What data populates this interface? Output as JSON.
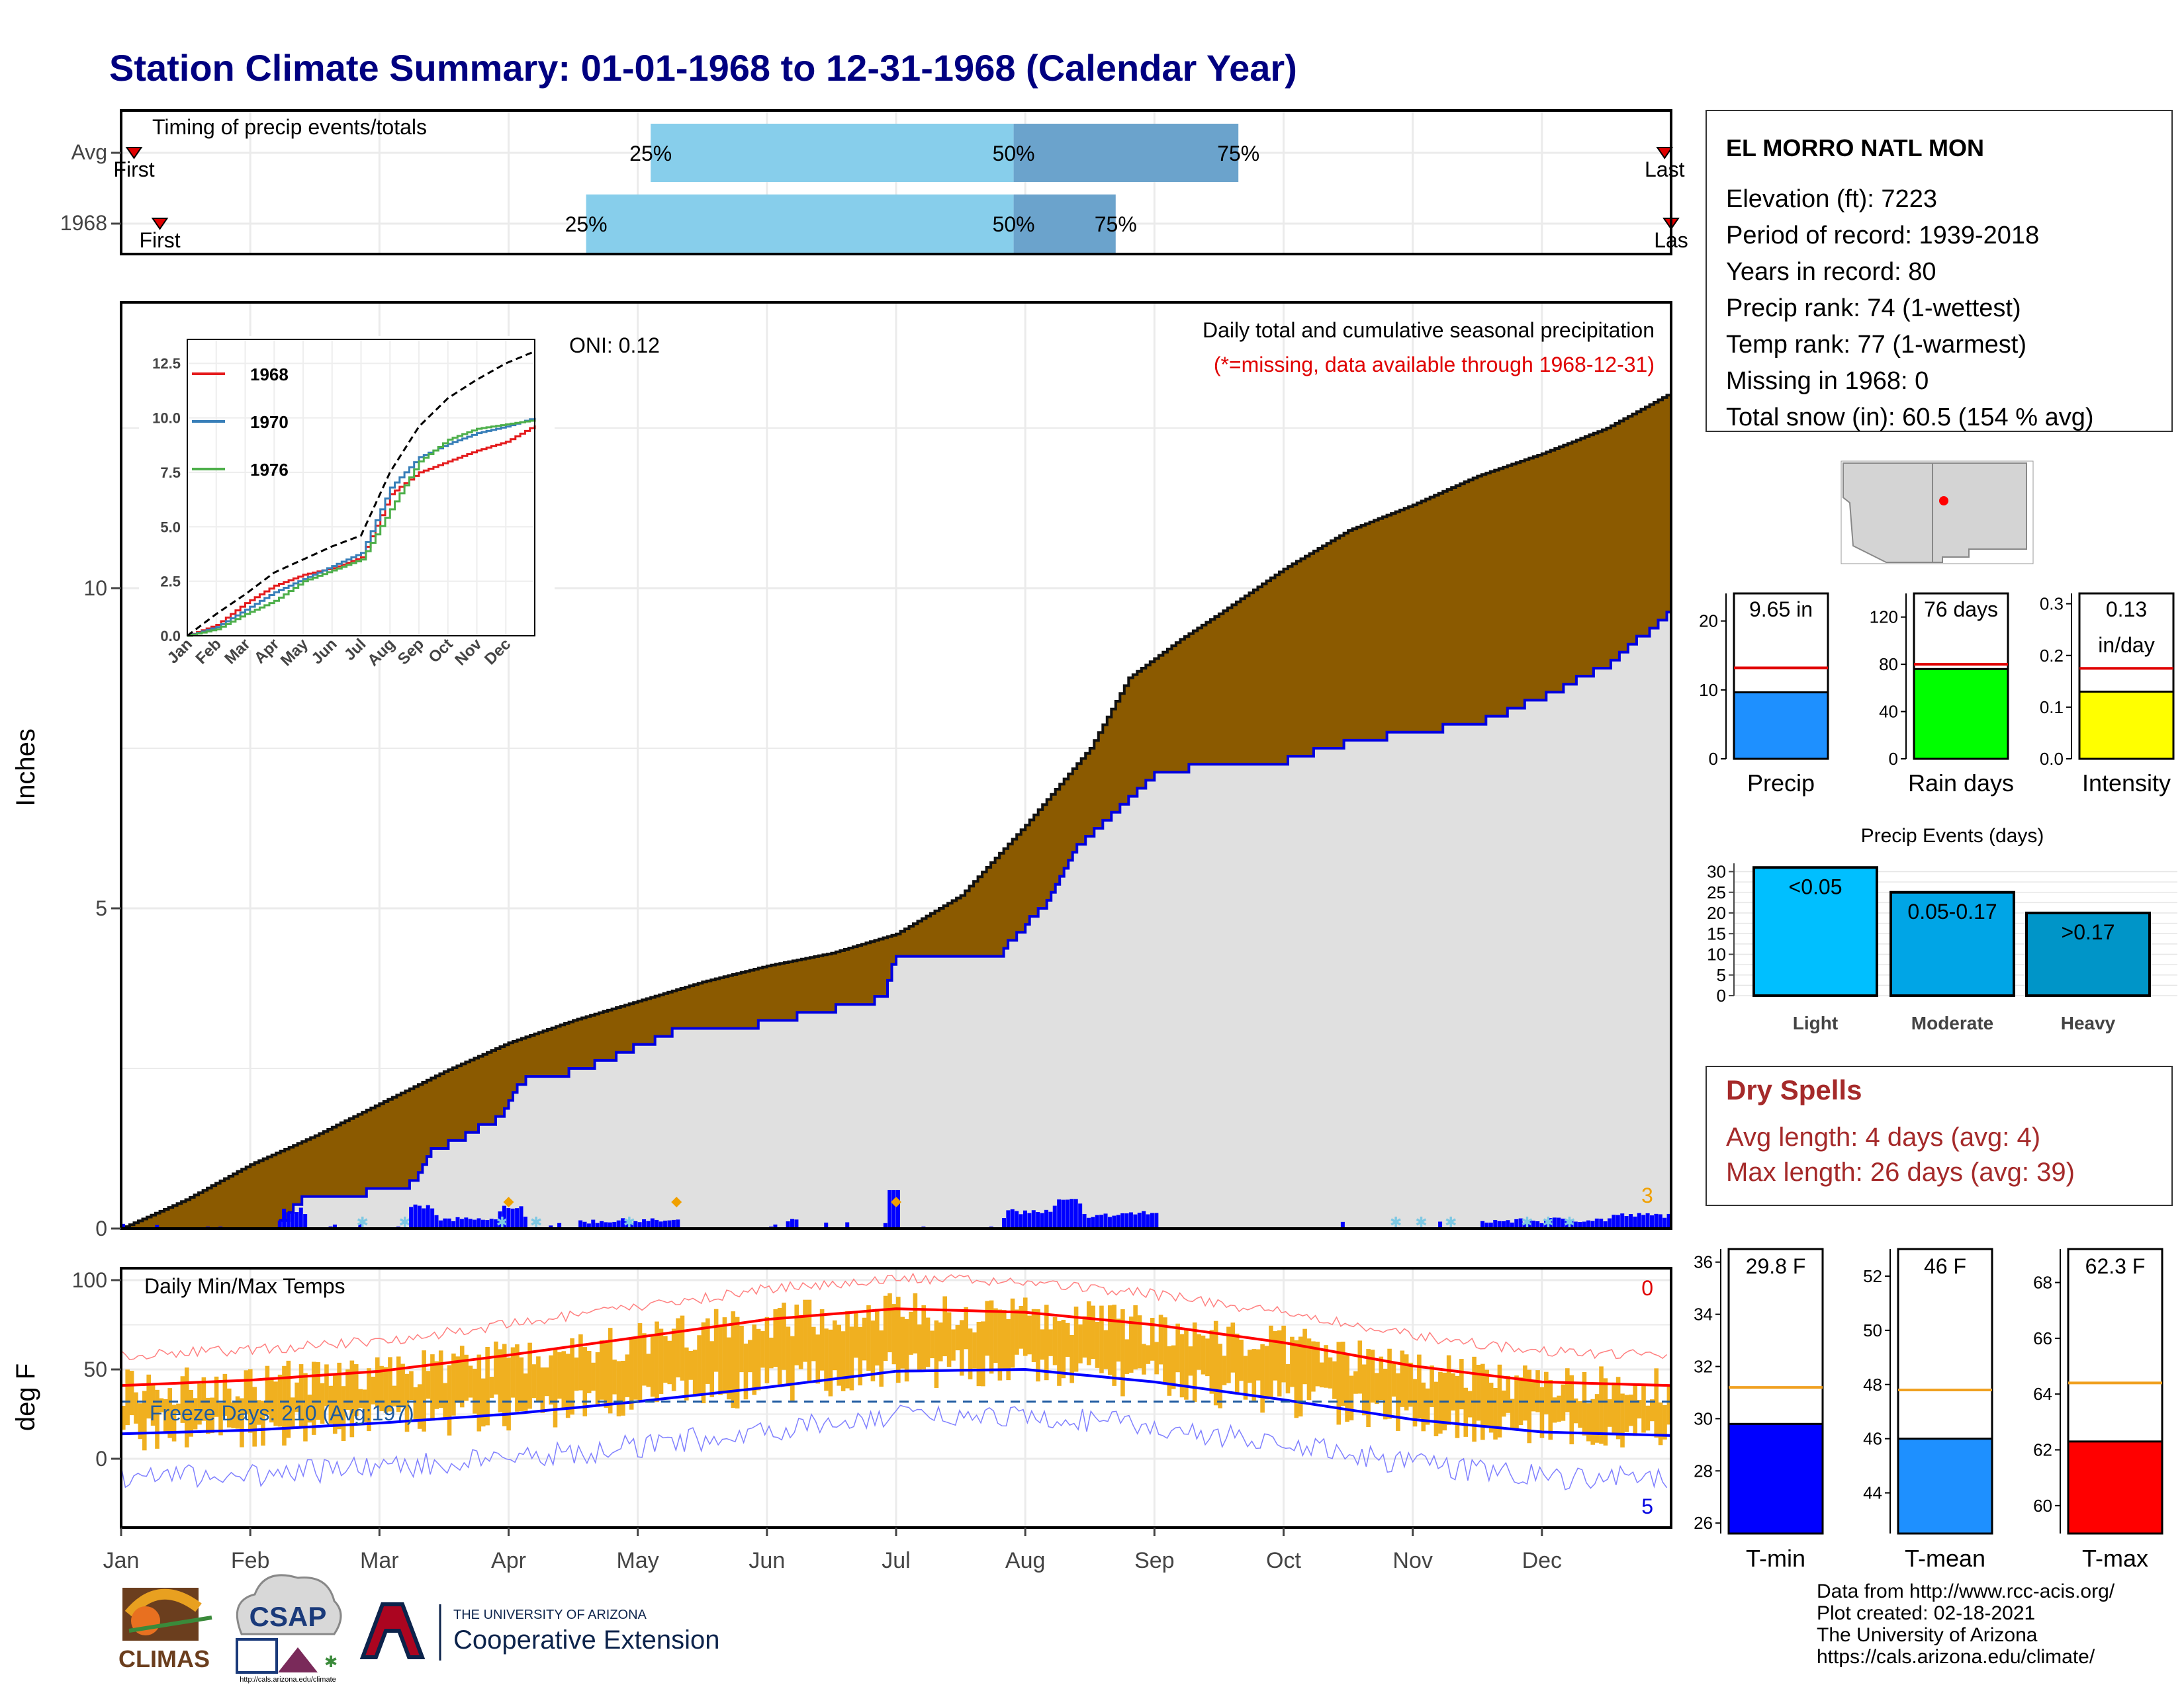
{
  "page_title": "Station Climate Summary: 01-01-1968 to 12-31-1968 (Calendar Year)",
  "timing": {
    "title": "Timing of precip events/totals",
    "rows": [
      {
        "label": "Avg",
        "first_label": "First",
        "last_label": "Last",
        "p25": "25%",
        "p50": "50%",
        "p75": "75%",
        "p25_month": 4.1,
        "p50_month": 6.91,
        "p75_month": 8.65,
        "first_month": 0.1,
        "last_month": 11.95
      },
      {
        "label": "1968",
        "first_label": "First",
        "last_label": "Las",
        "p25": "25%",
        "p50": "50%",
        "p75": "75%",
        "p25_month": 3.6,
        "p50_month": 6.91,
        "p75_month": 7.7,
        "first_month": 0.3,
        "last_month": 12.0
      }
    ]
  },
  "main": {
    "ylabel": "Inches",
    "oni": "ONI: 0.12",
    "caption": "Daily total and cumulative seasonal precipitation",
    "missing_note": "(*=missing, data available through 1968-12-31)",
    "event_count": "3",
    "yticks": [
      "0",
      "5",
      "10"
    ],
    "months": [
      "Jan",
      "Feb",
      "Mar",
      "Apr",
      "May",
      "Jun",
      "Jul",
      "Aug",
      "Sep",
      "Oct",
      "Nov",
      "Dec"
    ]
  },
  "temps": {
    "title": "Daily Min/Max Temps",
    "ylabel": "deg F",
    "freeze": "Freeze Days: 210 (Avg:197)",
    "max_count": "0",
    "min_count": "5",
    "yticks": [
      "0",
      "50",
      "100"
    ]
  },
  "inset": {
    "legend": [
      "1968",
      "1970",
      "1976"
    ],
    "colors": [
      "#e41a1c",
      "#377eb8",
      "#4daf4a"
    ],
    "yticks": [
      "0.0",
      "2.5",
      "5.0",
      "7.5",
      "10.0",
      "12.5"
    ],
    "months": [
      "Jan",
      "Feb",
      "Mar",
      "Apr",
      "May",
      "Jun",
      "Jul",
      "Aug",
      "Sep",
      "Oct",
      "Nov",
      "Dec"
    ]
  },
  "station": {
    "name": "EL MORRO NATL MON",
    "lines": [
      "Elevation (ft): 7223",
      "Period of record: 1939-2018",
      "Years in record: 80",
      "Precip rank: 74 (1-wettest)",
      "Temp rank: 77 (1-warmest)",
      "Missing in 1968: 0",
      "Total snow (in): 60.5 (154 % avg)"
    ]
  },
  "mini_bars": [
    {
      "value_label": "9.65 in",
      "xlabel": "Precip",
      "color": "#1e90ff",
      "ticks": [
        "0",
        "10",
        "20"
      ]
    },
    {
      "value_label": "76 days",
      "xlabel": "Rain days",
      "color": "#00ff00",
      "ticks": [
        "0",
        "40",
        "80",
        "120"
      ]
    },
    {
      "value_label": "0.13",
      "value_label2": "in/day",
      "xlabel": "Intensity",
      "color": "#ffff00",
      "ticks": [
        "0.0",
        "0.1",
        "0.2",
        "0.3"
      ]
    }
  ],
  "events": {
    "title": "Precip Events (days)",
    "ticks": [
      "0",
      "5",
      "10",
      "15",
      "20",
      "25",
      "30"
    ],
    "bars": [
      {
        "label": "<0.05",
        "cat": "Light",
        "color": "#00bfff"
      },
      {
        "label": "0.05-0.17",
        "cat": "Moderate",
        "color": "#00a5e6"
      },
      {
        "label": ">0.17",
        "cat": "Heavy",
        "color": "#0095c8"
      }
    ]
  },
  "dry_spells": {
    "title": "Dry Spells",
    "avg": "Avg length: 4 days (avg: 4)",
    "max": "Max length: 26 days (avg: 39)"
  },
  "temp_bars": [
    {
      "value_label": "29.8 F",
      "xlabel": "T-min",
      "color": "#0000ff",
      "ticks": [
        "26",
        "28",
        "30",
        "32",
        "34",
        "36"
      ]
    },
    {
      "value_label": "46 F",
      "xlabel": "T-mean",
      "color": "#1e90ff",
      "ticks": [
        "44",
        "46",
        "48",
        "50",
        "52"
      ]
    },
    {
      "value_label": "62.3 F",
      "xlabel": "T-max",
      "color": "#ff0000",
      "ticks": [
        "60",
        "62",
        "64",
        "66",
        "68"
      ]
    }
  ],
  "footer": {
    "source": "Data from http://www.rcc-acis.org/",
    "created": "Plot created: 02-18-2021",
    "org": "The University of Arizona",
    "url": "https://cals.arizona.edu/climate/"
  },
  "logos": {
    "climas": "CLIMAS",
    "csap": "CSAP",
    "csap_url": "http://cals.arizona.edu/climate",
    "ua_small": "THE UNIVERSITY OF ARIZONA",
    "ua_ext": "Cooperative Extension"
  },
  "chart_data": [
    {
      "type": "area",
      "title": "Daily total and cumulative seasonal precipitation",
      "xlabel": "",
      "ylabel": "Inches",
      "ylim": [
        0,
        13.5
      ],
      "x_unit": "month (0=Jan 1, 12=Dec 31)",
      "series": [
        {
          "name": "Avg",
          "x": [
            0,
            0.5,
            1,
            1.5,
            2,
            2.5,
            3,
            3.5,
            4,
            4.5,
            5,
            5.5,
            6,
            6.5,
            7,
            7.5,
            7.8,
            8.2,
            8.5,
            9,
            9.5,
            10,
            10.5,
            11,
            11.5,
            12
          ],
          "values": [
            0,
            0.45,
            1.0,
            1.45,
            1.95,
            2.45,
            2.9,
            3.25,
            3.55,
            3.85,
            4.1,
            4.3,
            4.6,
            5.2,
            6.3,
            7.5,
            8.6,
            9.2,
            9.6,
            10.3,
            10.9,
            11.3,
            11.75,
            12.1,
            12.5,
            13.05
          ]
        },
        {
          "name": "1968",
          "x": [
            0,
            1.2,
            1.4,
            2.2,
            2.4,
            2.9,
            3.1,
            3.5,
            3.7,
            4.3,
            4.4,
            5.1,
            5.2,
            5.9,
            6.0,
            6.8,
            7.2,
            7.4,
            7.7,
            8.0,
            8.3,
            9.0,
            9.5,
            10.5,
            11.0,
            11.5,
            12
          ],
          "values": [
            0,
            0,
            0.5,
            0.6,
            1.2,
            1.7,
            2.3,
            2.45,
            2.6,
            3.1,
            3.15,
            3.2,
            3.3,
            3.6,
            4.3,
            4.3,
            5.2,
            6.0,
            6.5,
            7.1,
            7.2,
            7.3,
            7.6,
            7.9,
            8.3,
            8.8,
            9.65
          ]
        }
      ]
    },
    {
      "type": "line",
      "title": "Daily Min/Max Temps",
      "ylabel": "deg F",
      "ylim": [
        -35,
        105
      ],
      "x_unit": "month",
      "series": [
        {
          "name": "Avg max",
          "x": [
            0,
            1,
            2,
            3,
            4,
            5,
            6,
            7,
            8,
            9,
            10,
            11,
            12
          ],
          "values": [
            41,
            44,
            49,
            58,
            68,
            78,
            84,
            82,
            75,
            65,
            52,
            43,
            41
          ]
        },
        {
          "name": "Avg min",
          "x": [
            0,
            1,
            2,
            3,
            4,
            5,
            6,
            7,
            8,
            9,
            10,
            11,
            12
          ],
          "values": [
            14,
            16,
            20,
            25,
            32,
            40,
            49,
            50,
            43,
            33,
            22,
            15,
            13
          ]
        },
        {
          "name": "Freeze",
          "x": [
            0,
            12
          ],
          "values": [
            32,
            32
          ]
        }
      ]
    },
    {
      "type": "line",
      "title": "",
      "ylim": [
        0,
        13
      ],
      "series": [
        {
          "name": "1968",
          "x": [
            0,
            1,
            2,
            3,
            4,
            5,
            6,
            7,
            8,
            9,
            10,
            11,
            12
          ],
          "values": [
            0,
            0.5,
            1.5,
            2.3,
            2.8,
            3.1,
            3.6,
            6.5,
            7.5,
            8.0,
            8.5,
            8.9,
            9.65
          ]
        },
        {
          "name": "1970",
          "x": [
            0,
            1,
            2,
            3,
            4,
            5,
            6,
            7,
            8,
            9,
            10,
            11,
            12
          ],
          "values": [
            0,
            0.4,
            1.2,
            2.0,
            2.6,
            3.2,
            3.8,
            6.8,
            8.2,
            8.8,
            9.3,
            9.6,
            10.0
          ]
        },
        {
          "name": "1976",
          "x": [
            0,
            1,
            2,
            3,
            4,
            5,
            6,
            7,
            8,
            9,
            10,
            11,
            12
          ],
          "values": [
            0,
            0.3,
            1.0,
            1.6,
            2.5,
            3.0,
            3.5,
            5.8,
            8.0,
            9.0,
            9.5,
            9.7,
            9.9
          ]
        },
        {
          "name": "Avg",
          "x": [
            0,
            1,
            2,
            3,
            4,
            5,
            6,
            7,
            8,
            9,
            10,
            11,
            12
          ],
          "values": [
            0,
            1.0,
            1.9,
            2.9,
            3.5,
            4.1,
            4.6,
            7.5,
            9.6,
            10.9,
            11.75,
            12.5,
            13.05
          ]
        }
      ]
    },
    {
      "type": "bar",
      "title": "",
      "categories": [
        "Precip"
      ],
      "values": [
        9.65
      ],
      "reference": 13.2,
      "ylim": [
        0,
        24
      ]
    },
    {
      "type": "bar",
      "title": "",
      "categories": [
        "Rain days"
      ],
      "values": [
        76
      ],
      "reference": 80,
      "ylim": [
        0,
        140
      ]
    },
    {
      "type": "bar",
      "title": "",
      "categories": [
        "Intensity"
      ],
      "values": [
        0.13
      ],
      "reference": 0.175,
      "ylim": [
        0,
        0.32
      ]
    },
    {
      "type": "bar",
      "title": "Precip Events (days)",
      "categories": [
        "Light",
        "Moderate",
        "Heavy"
      ],
      "values": [
        31,
        25,
        20
      ],
      "ylim": [
        0,
        32
      ]
    },
    {
      "type": "bar",
      "title": "",
      "categories": [
        "T-min"
      ],
      "values": [
        29.8
      ],
      "reference": 31.2,
      "ylim": [
        25.6,
        36.5
      ]
    },
    {
      "type": "bar",
      "title": "",
      "categories": [
        "T-mean"
      ],
      "values": [
        46
      ],
      "reference": 47.8,
      "ylim": [
        42.5,
        53
      ]
    },
    {
      "type": "bar",
      "title": "",
      "categories": [
        "T-max"
      ],
      "values": [
        62.3
      ],
      "reference": 64.4,
      "ylim": [
        59,
        69.2
      ]
    }
  ]
}
